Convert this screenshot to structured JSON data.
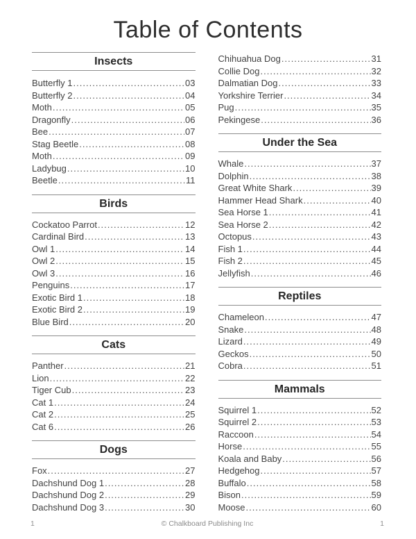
{
  "page": {
    "title": "Table of Contents"
  },
  "footer": {
    "page_number_left": "1",
    "copyright": "© Chalkboard Publishing Inc",
    "page_number_right": "1"
  },
  "columns": [
    {
      "sections": [
        {
          "heading": "Insects",
          "entries": [
            {
              "title": "Butterfly 1",
              "page": "03"
            },
            {
              "title": "Butterfly 2",
              "page": "04"
            },
            {
              "title": "Moth",
              "page": "05"
            },
            {
              "title": "Dragonfly",
              "page": "06"
            },
            {
              "title": "Bee",
              "page": "07"
            },
            {
              "title": "Stag Beetle",
              "page": "08"
            },
            {
              "title": "Moth",
              "page": "09"
            },
            {
              "title": "Ladybug",
              "page": "10"
            },
            {
              "title": "Beetle",
              "page": "11"
            }
          ]
        },
        {
          "heading": "Birds",
          "entries": [
            {
              "title": "Cockatoo Parrot",
              "page": "12"
            },
            {
              "title": "Cardinal Bird",
              "page": "13"
            },
            {
              "title": "Owl 1",
              "page": "14"
            },
            {
              "title": "Owl 2",
              "page": "15"
            },
            {
              "title": "Owl 3",
              "page": "16"
            },
            {
              "title": "Penguins",
              "page": "17"
            },
            {
              "title": "Exotic Bird 1",
              "page": "18"
            },
            {
              "title": "Exotic Bird 2",
              "page": "19"
            },
            {
              "title": "Blue Bird",
              "page": "20"
            }
          ]
        },
        {
          "heading": "Cats",
          "entries": [
            {
              "title": "Panther",
              "page": "21"
            },
            {
              "title": "Lion",
              "page": "22"
            },
            {
              "title": "Tiger Cub",
              "page": "23"
            },
            {
              "title": "Cat 1",
              "page": "24"
            },
            {
              "title": "Cat 2",
              "page": "25"
            },
            {
              "title": "Cat 6",
              "page": "26"
            }
          ]
        },
        {
          "heading": "Dogs",
          "entries": [
            {
              "title": "Fox",
              "page": "27"
            },
            {
              "title": "Dachshund Dog 1",
              "page": "28"
            },
            {
              "title": "Dachshund Dog 2",
              "page": "29"
            },
            {
              "title": "Dachshund Dog 3",
              "page": "30"
            }
          ]
        }
      ]
    },
    {
      "sections": [
        {
          "heading": null,
          "entries": [
            {
              "title": "Chihuahua Dog",
              "page": "31"
            },
            {
              "title": "Collie Dog",
              "page": "32"
            },
            {
              "title": "Dalmatian Dog",
              "page": "33"
            },
            {
              "title": "Yorkshire Terrier",
              "page": "34"
            },
            {
              "title": "Pug",
              "page": "35"
            },
            {
              "title": "Pekingese",
              "page": "36"
            }
          ]
        },
        {
          "heading": "Under the Sea",
          "entries": [
            {
              "title": "Whale",
              "page": "37"
            },
            {
              "title": "Dolphin",
              "page": "38"
            },
            {
              "title": "Great White Shark",
              "page": "39"
            },
            {
              "title": "Hammer Head Shark",
              "page": "40"
            },
            {
              "title": "Sea Horse 1",
              "page": "41"
            },
            {
              "title": "Sea Horse 2",
              "page": "42"
            },
            {
              "title": "Octopus",
              "page": "43"
            },
            {
              "title": "Fish 1",
              "page": "44"
            },
            {
              "title": "Fish 2",
              "page": "45"
            },
            {
              "title": "Jellyfish",
              "page": "46"
            }
          ]
        },
        {
          "heading": "Reptiles",
          "entries": [
            {
              "title": "Chameleon",
              "page": "47"
            },
            {
              "title": "Snake",
              "page": "48"
            },
            {
              "title": "Lizard",
              "page": "49"
            },
            {
              "title": "Geckos",
              "page": "50"
            },
            {
              "title": "Cobra",
              "page": "51"
            }
          ]
        },
        {
          "heading": "Mammals",
          "entries": [
            {
              "title": "Squirrel 1",
              "page": "52"
            },
            {
              "title": "Squirrel 2",
              "page": "53"
            },
            {
              "title": "Raccoon",
              "page": "54"
            },
            {
              "title": "Horse",
              "page": "55"
            },
            {
              "title": "Koala and Baby",
              "page": "56"
            },
            {
              "title": "Hedgehog",
              "page": "57"
            },
            {
              "title": "Buffalo",
              "page": "58"
            },
            {
              "title": "Bison",
              "page": "59"
            },
            {
              "title": "Moose",
              "page": "60"
            }
          ]
        }
      ]
    }
  ]
}
